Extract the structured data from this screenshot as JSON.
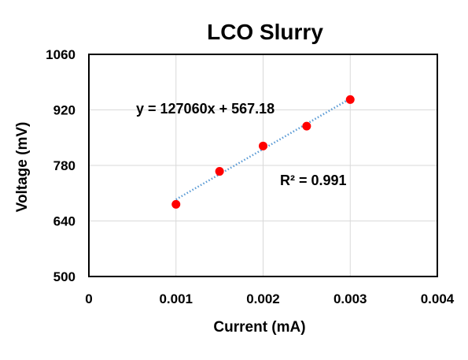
{
  "chart_data": {
    "type": "scatter",
    "title": "LCO Slurry",
    "xlabel": "Current  (mA)",
    "ylabel": "Voltage  (mV)",
    "xlim": [
      0,
      0.004
    ],
    "ylim": [
      500,
      1060
    ],
    "x_ticks": [
      0,
      0.001,
      0.002,
      0.003,
      0.004
    ],
    "y_ticks": [
      500,
      640,
      780,
      920,
      1060
    ],
    "x_tick_labels": [
      "0",
      "0.001",
      "0.002",
      "0.003",
      "0.004"
    ],
    "y_tick_labels": [
      "500",
      "640",
      "780",
      "920",
      "1060"
    ],
    "grid": true,
    "legend": "none",
    "series": [
      {
        "x": [
          0.001,
          0.0015,
          0.002,
          0.0025,
          0.003
        ],
        "y": [
          682,
          765,
          829,
          879,
          946
        ],
        "color": "#ff0000"
      }
    ],
    "trendline": {
      "type": "linear",
      "slope": 127060,
      "intercept": 567.18,
      "x_range": [
        0.001,
        0.003
      ],
      "color": "#5b9bd5",
      "style": "dotted"
    },
    "annotations": {
      "equation": "y = 127060x + 567.18",
      "r_squared": "R² = 0.991"
    }
  }
}
